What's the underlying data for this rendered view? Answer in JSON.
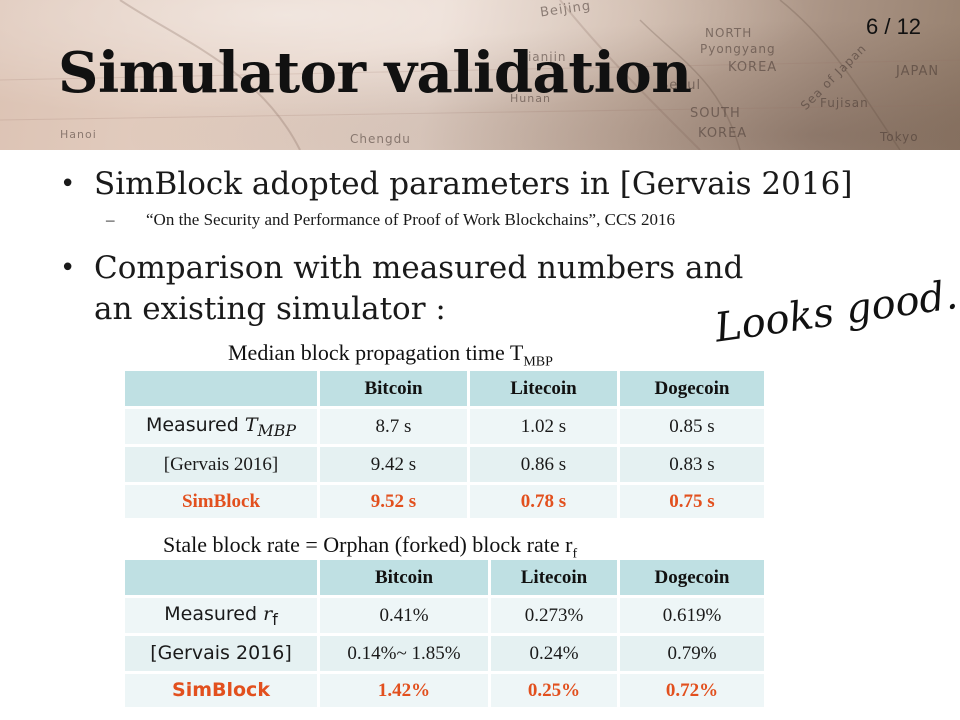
{
  "header": {
    "map_labels": [
      "Beijing",
      "Tianjin",
      "NORTH",
      "Pyongyang",
      "KOREA",
      "Seoul",
      "SOUTH",
      "KOREA",
      "JAPAN",
      "Sea of Japan",
      "Fujisan",
      "Tokyo",
      "Chengdu",
      "Hunan",
      "Hanoi"
    ]
  },
  "page_number": "6 / 12",
  "title": "Simulator validation",
  "bullets": {
    "b1": "SimBlock adopted parameters in [Gervais 2016]",
    "b1_sub": "“On the Security and Performance of Proof of Work Blockchains”, CCS 2016",
    "b2_line1": "Comparison with measured numbers and",
    "b2_line2": "an existing simulator :"
  },
  "annotation": "Looks good.",
  "table1": {
    "caption": "Median block propagation  time T",
    "caption_sub": "MBP",
    "headers": [
      "",
      "Bitcoin",
      "Litecoin",
      "Dogecoin"
    ],
    "rows": [
      {
        "label": "Measured ",
        "label_italic": "T",
        "label_sub": "MBP",
        "values": [
          "8.7 s",
          "1.02 s",
          "0.85 s"
        ]
      },
      {
        "label": "[Gervais 2016]",
        "values": [
          "9.42 s",
          "0.86 s",
          "0.83 s"
        ]
      },
      {
        "label": "SimBlock",
        "values": [
          "9.52 s",
          "0.78 s",
          "0.75 s"
        ]
      }
    ]
  },
  "table2": {
    "caption": "Stale block rate = Orphan (forked) block rate r",
    "caption_sub": "f",
    "headers": [
      "",
      "Bitcoin",
      "Litecoin",
      "Dogecoin"
    ],
    "rows": [
      {
        "label": "Measured ",
        "label_italic": "r",
        "label_sub": "f",
        "values": [
          "0.41%",
          "0.273%",
          "0.619%"
        ]
      },
      {
        "label": "[Gervais 2016]",
        "values": [
          "0.14%~ 1.85%",
          "0.24%",
          "0.79%"
        ]
      },
      {
        "label": "SimBlock",
        "values": [
          "1.42%",
          "0.25%",
          "0.72%"
        ]
      }
    ]
  },
  "colors": {
    "header_cell": "#bfe0e3",
    "row_light": "#eef6f7",
    "simblock_accent": "#e2501e"
  }
}
